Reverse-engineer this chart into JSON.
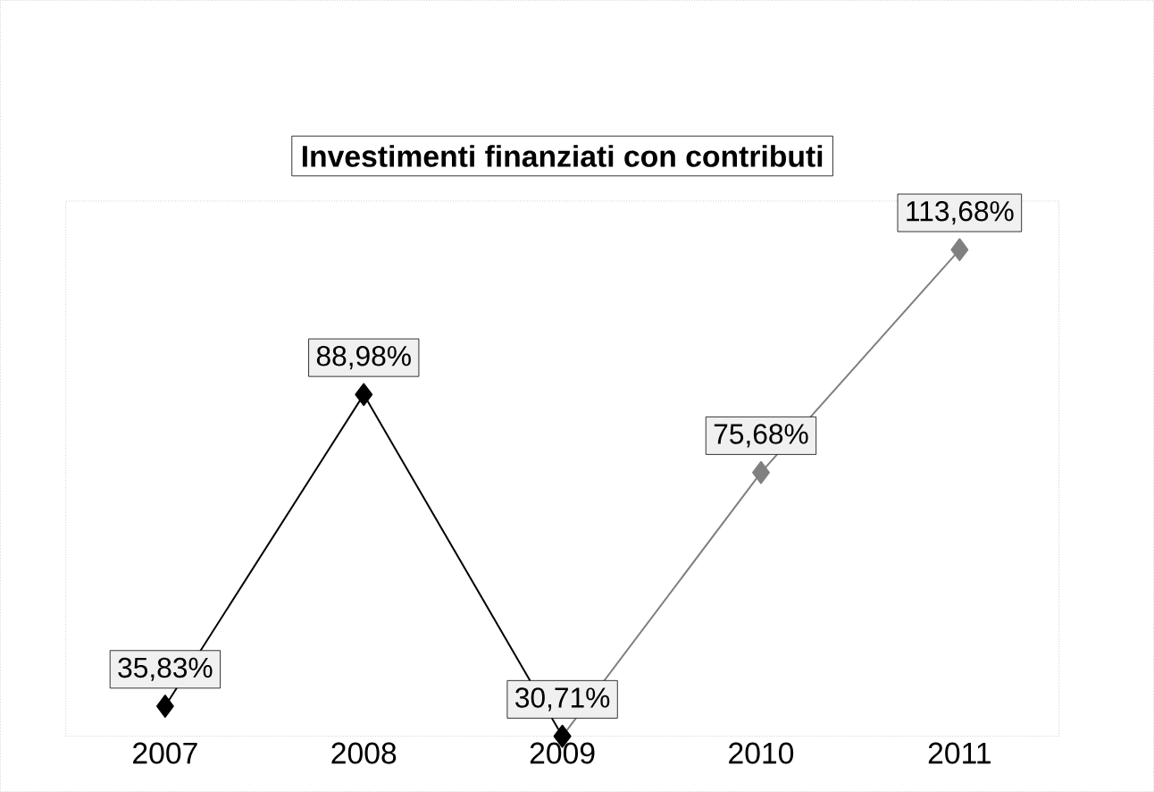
{
  "chart_data": {
    "type": "line",
    "title": "Investimenti finanziati con contributi",
    "categories": [
      "2007",
      "2008",
      "2009",
      "2010",
      "2011"
    ],
    "series": [
      {
        "color": "#808080",
        "values": [
          null,
          null,
          30.71,
          75.68,
          113.68
        ],
        "value_labels": [
          null,
          null,
          null,
          "75,68%",
          "113,68%"
        ]
      },
      {
        "color": "#000000",
        "values": [
          35.83,
          88.98,
          30.71,
          null,
          null
        ],
        "value_labels": [
          "35,83%",
          "88,98%",
          "30,71%",
          null,
          null
        ]
      }
    ],
    "marker": "diamond"
  }
}
